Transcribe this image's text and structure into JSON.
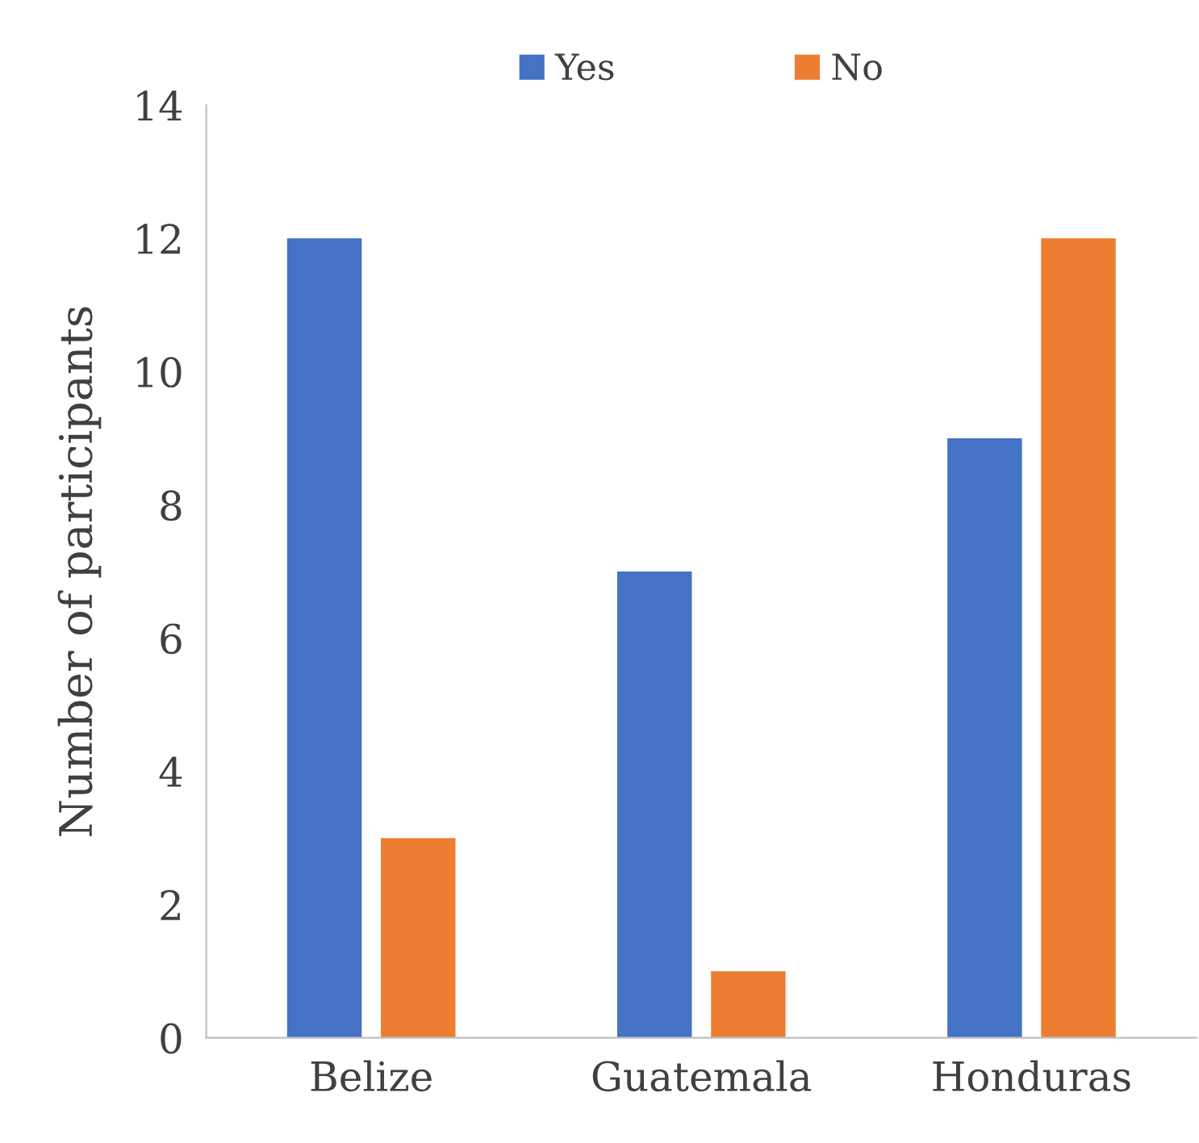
{
  "chart_data": {
    "type": "bar",
    "ylabel": "Number of participants",
    "categories": [
      "Belize",
      "Guatemala",
      "Honduras"
    ],
    "series": [
      {
        "name": "Yes",
        "color": "#4472c4",
        "values": [
          12,
          7,
          9
        ]
      },
      {
        "name": "No",
        "color": "#ed7d31",
        "values": [
          3,
          1,
          12
        ]
      }
    ],
    "ylim": [
      0,
      14
    ],
    "yticks": [
      0,
      2,
      4,
      6,
      8,
      10,
      12,
      14
    ],
    "grid": false,
    "legend": "top"
  }
}
